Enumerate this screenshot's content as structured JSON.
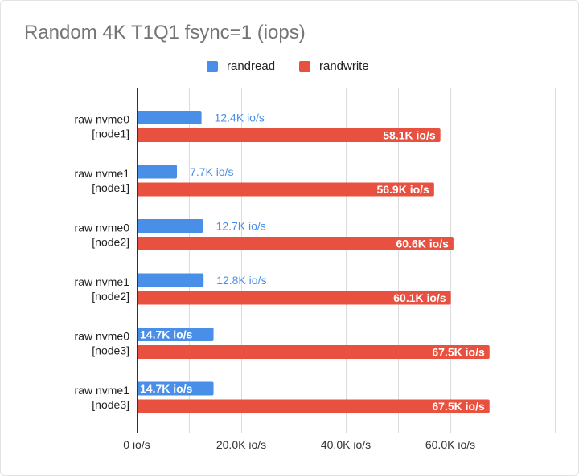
{
  "chart_data": {
    "type": "bar",
    "orientation": "horizontal",
    "title": "Random 4K T1Q1 fsync=1 (iops)",
    "legend_position": "top",
    "grid": true,
    "xlim": [
      0,
      80000
    ],
    "x_ticks": [
      {
        "value": 0,
        "label": "0 io/s"
      },
      {
        "value": 20000,
        "label": "20.0K io/s"
      },
      {
        "value": 40000,
        "label": "40.0K io/s"
      },
      {
        "value": 60000,
        "label": "60.0K io/s"
      }
    ],
    "categories": [
      [
        "raw nvme0",
        "[node1]"
      ],
      [
        "raw nvme1",
        "[node1]"
      ],
      [
        "raw nvme0",
        "[node2]"
      ],
      [
        "raw nvme1",
        "[node2]"
      ],
      [
        "raw nvme0",
        "[node3]"
      ],
      [
        "raw nvme1",
        "[node3]"
      ]
    ],
    "series": [
      {
        "name": "randread",
        "color": "#4a8fe7",
        "values": [
          12400,
          7700,
          12700,
          12800,
          14700,
          14700
        ],
        "data_labels": [
          "12.4K io/s",
          "7.7K io/s",
          "12.7K io/s",
          "12.8K io/s",
          "14.7K io/s",
          "14.7K io/s"
        ]
      },
      {
        "name": "randwrite",
        "color": "#e8513f",
        "values": [
          58100,
          56900,
          60600,
          60100,
          67500,
          67500
        ],
        "data_labels": [
          "58.1K io/s",
          "56.9K io/s",
          "60.6K io/s",
          "60.1K io/s",
          "67.5K io/s",
          "67.5K io/s"
        ]
      }
    ]
  }
}
